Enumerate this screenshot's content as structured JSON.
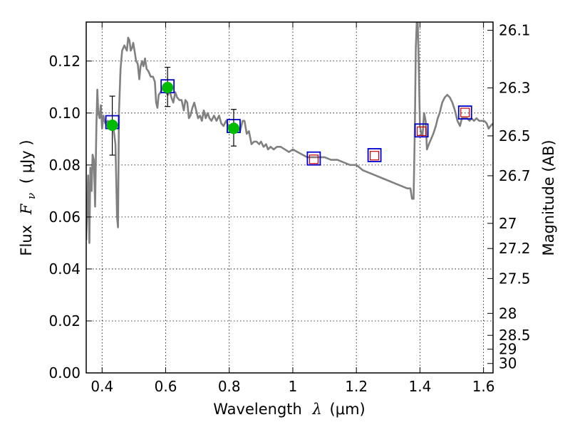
{
  "chart_data": {
    "type": "line",
    "xlabel_prefix": "Wavelength",
    "xlabel_symbol": "λ",
    "xlabel_unit": "(μm)",
    "ylabel_prefix": "Flux",
    "ylabel_symbol": "F",
    "ylabel_sub": "ν",
    "ylabel_unit": "( μJy )",
    "y2label": "Magnitude (AB)",
    "xlim": [
      0.35,
      1.63
    ],
    "ylim": [
      0.0,
      0.135
    ],
    "x_ticks": [
      0.4,
      0.6,
      0.8,
      1.0,
      1.2,
      1.4,
      1.6
    ],
    "x_tick_labels": [
      "0.4",
      "0.6",
      "0.8",
      "1",
      "1.2",
      "1.4",
      "1.6"
    ],
    "y_ticks": [
      0.0,
      0.02,
      0.04,
      0.06,
      0.08,
      0.1,
      0.12
    ],
    "y_tick_labels": [
      "0.00",
      "0.02",
      "0.04",
      "0.06",
      "0.08",
      "0.10",
      "0.12"
    ],
    "y2_ticks": [
      26.1,
      26.3,
      26.5,
      26.7,
      27,
      27.2,
      27.5,
      28,
      28.5,
      29,
      30
    ],
    "y2_tick_labels": [
      "26.1",
      "26.3",
      "26.5",
      "26.7",
      "27",
      "27.2",
      "27.5",
      "28",
      "28.5",
      "29",
      "30"
    ],
    "grid": true,
    "colors": {
      "model": "#808080",
      "observed": "#00bb00",
      "box": "#0000cc",
      "model_box": "#cc0000",
      "errorbar": "#000000"
    },
    "model_spectrum": [
      [
        0.35,
        0.051
      ],
      [
        0.356,
        0.076
      ],
      [
        0.36,
        0.05
      ],
      [
        0.363,
        0.079
      ],
      [
        0.367,
        0.07
      ],
      [
        0.37,
        0.084
      ],
      [
        0.374,
        0.082
      ],
      [
        0.378,
        0.064
      ],
      [
        0.382,
        0.095
      ],
      [
        0.385,
        0.109
      ],
      [
        0.388,
        0.1
      ],
      [
        0.392,
        0.098
      ],
      [
        0.396,
        0.103
      ],
      [
        0.4,
        0.094
      ],
      [
        0.404,
        0.099
      ],
      [
        0.41,
        0.096
      ],
      [
        0.418,
        0.097
      ],
      [
        0.426,
        0.096
      ],
      [
        0.432,
        0.094
      ],
      [
        0.437,
        0.093
      ],
      [
        0.442,
        0.088
      ],
      [
        0.447,
        0.06
      ],
      [
        0.45,
        0.056
      ],
      [
        0.453,
        0.1
      ],
      [
        0.458,
        0.117
      ],
      [
        0.463,
        0.124
      ],
      [
        0.47,
        0.126
      ],
      [
        0.478,
        0.124
      ],
      [
        0.482,
        0.129
      ],
      [
        0.486,
        0.128
      ],
      [
        0.49,
        0.124
      ],
      [
        0.494,
        0.125
      ],
      [
        0.498,
        0.127
      ],
      [
        0.502,
        0.124
      ],
      [
        0.507,
        0.12
      ],
      [
        0.512,
        0.119
      ],
      [
        0.517,
        0.113
      ],
      [
        0.521,
        0.118
      ],
      [
        0.526,
        0.12
      ],
      [
        0.53,
        0.118
      ],
      [
        0.535,
        0.121
      ],
      [
        0.54,
        0.117
      ],
      [
        0.546,
        0.116
      ],
      [
        0.553,
        0.114
      ],
      [
        0.56,
        0.114
      ],
      [
        0.566,
        0.112
      ],
      [
        0.57,
        0.104
      ],
      [
        0.574,
        0.102
      ],
      [
        0.578,
        0.107
      ],
      [
        0.584,
        0.108
      ],
      [
        0.592,
        0.11
      ],
      [
        0.6,
        0.108
      ],
      [
        0.607,
        0.107
      ],
      [
        0.612,
        0.109
      ],
      [
        0.618,
        0.106
      ],
      [
        0.624,
        0.104
      ],
      [
        0.63,
        0.108
      ],
      [
        0.636,
        0.106
      ],
      [
        0.643,
        0.105
      ],
      [
        0.65,
        0.105
      ],
      [
        0.657,
        0.101
      ],
      [
        0.662,
        0.105
      ],
      [
        0.668,
        0.104
      ],
      [
        0.673,
        0.098
      ],
      [
        0.678,
        0.099
      ],
      [
        0.684,
        0.102
      ],
      [
        0.69,
        0.104
      ],
      [
        0.696,
        0.101
      ],
      [
        0.702,
        0.098
      ],
      [
        0.708,
        0.099
      ],
      [
        0.714,
        0.097
      ],
      [
        0.72,
        0.101
      ],
      [
        0.726,
        0.098
      ],
      [
        0.732,
        0.1
      ],
      [
        0.738,
        0.098
      ],
      [
        0.744,
        0.097
      ],
      [
        0.752,
        0.099
      ],
      [
        0.76,
        0.097
      ],
      [
        0.768,
        0.099
      ],
      [
        0.775,
        0.096
      ],
      [
        0.782,
        0.095
      ],
      [
        0.79,
        0.097
      ],
      [
        0.798,
        0.095
      ],
      [
        0.806,
        0.093
      ],
      [
        0.812,
        0.094
      ],
      [
        0.818,
        0.096
      ],
      [
        0.826,
        0.095
      ],
      [
        0.834,
        0.093
      ],
      [
        0.842,
        0.097
      ],
      [
        0.848,
        0.097
      ],
      [
        0.855,
        0.092
      ],
      [
        0.862,
        0.093
      ],
      [
        0.87,
        0.088
      ],
      [
        0.878,
        0.089
      ],
      [
        0.886,
        0.089
      ],
      [
        0.894,
        0.088
      ],
      [
        0.9,
        0.089
      ],
      [
        0.908,
        0.087
      ],
      [
        0.916,
        0.088
      ],
      [
        0.922,
        0.086
      ],
      [
        0.93,
        0.087
      ],
      [
        0.94,
        0.086
      ],
      [
        0.95,
        0.087
      ],
      [
        0.962,
        0.087
      ],
      [
        0.975,
        0.086
      ],
      [
        0.988,
        0.085
      ],
      [
        1.0,
        0.086
      ],
      [
        1.015,
        0.085
      ],
      [
        1.03,
        0.084
      ],
      [
        1.045,
        0.083
      ],
      [
        1.06,
        0.083
      ],
      [
        1.08,
        0.083
      ],
      [
        1.1,
        0.083
      ],
      [
        1.12,
        0.082
      ],
      [
        1.14,
        0.082
      ],
      [
        1.16,
        0.081
      ],
      [
        1.18,
        0.08
      ],
      [
        1.2,
        0.08
      ],
      [
        1.22,
        0.078
      ],
      [
        1.24,
        0.077
      ],
      [
        1.26,
        0.076
      ],
      [
        1.28,
        0.075
      ],
      [
        1.3,
        0.074
      ],
      [
        1.32,
        0.073
      ],
      [
        1.34,
        0.072
      ],
      [
        1.36,
        0.071
      ],
      [
        1.37,
        0.071
      ],
      [
        1.375,
        0.067
      ],
      [
        1.38,
        0.067
      ],
      [
        1.384,
        0.095
      ],
      [
        1.387,
        0.125
      ],
      [
        1.39,
        0.135
      ],
      [
        1.393,
        0.135
      ],
      [
        1.396,
        0.12
      ],
      [
        1.4,
        0.095
      ],
      [
        1.404,
        0.092
      ],
      [
        1.408,
        0.091
      ],
      [
        1.413,
        0.1
      ],
      [
        1.418,
        0.097
      ],
      [
        1.422,
        0.086
      ],
      [
        1.428,
        0.088
      ],
      [
        1.435,
        0.09
      ],
      [
        1.442,
        0.092
      ],
      [
        1.45,
        0.095
      ],
      [
        1.456,
        0.098
      ],
      [
        1.462,
        0.1
      ],
      [
        1.47,
        0.104
      ],
      [
        1.478,
        0.106
      ],
      [
        1.486,
        0.107
      ],
      [
        1.494,
        0.106
      ],
      [
        1.502,
        0.104
      ],
      [
        1.51,
        0.101
      ],
      [
        1.518,
        0.097
      ],
      [
        1.526,
        0.095
      ],
      [
        1.532,
        0.098
      ],
      [
        1.54,
        0.098
      ],
      [
        1.548,
        0.098
      ],
      [
        1.556,
        0.097
      ],
      [
        1.562,
        0.098
      ],
      [
        1.57,
        0.097
      ],
      [
        1.578,
        0.098
      ],
      [
        1.586,
        0.097
      ],
      [
        1.594,
        0.097
      ],
      [
        1.602,
        0.097
      ],
      [
        1.61,
        0.096
      ],
      [
        1.616,
        0.094
      ],
      [
        1.622,
        0.095
      ],
      [
        1.63,
        0.096
      ]
    ],
    "observed_points": [
      {
        "x": 0.432,
        "y": 0.0953,
        "yerr_low": 0.0115,
        "yerr_high": 0.0112
      },
      {
        "x": 0.606,
        "y": 0.1098,
        "yerr_low": 0.0073,
        "yerr_high": 0.0078
      },
      {
        "x": 0.814,
        "y": 0.0941,
        "yerr_low": 0.0068,
        "yerr_high": 0.0073
      }
    ],
    "model_boxes": [
      {
        "x": 0.432,
        "y": 0.0965
      },
      {
        "x": 0.606,
        "y": 0.1103
      },
      {
        "x": 0.814,
        "y": 0.095
      },
      {
        "x": 1.066,
        "y": 0.0825
      },
      {
        "x": 1.257,
        "y": 0.0838
      },
      {
        "x": 1.405,
        "y": 0.0933
      },
      {
        "x": 1.542,
        "y": 0.1002
      }
    ],
    "model_inner_boxes": [
      {
        "x": 1.066,
        "y": 0.0822
      },
      {
        "x": 1.257,
        "y": 0.0836
      },
      {
        "x": 1.405,
        "y": 0.093
      },
      {
        "x": 1.542,
        "y": 0.1002
      }
    ]
  }
}
